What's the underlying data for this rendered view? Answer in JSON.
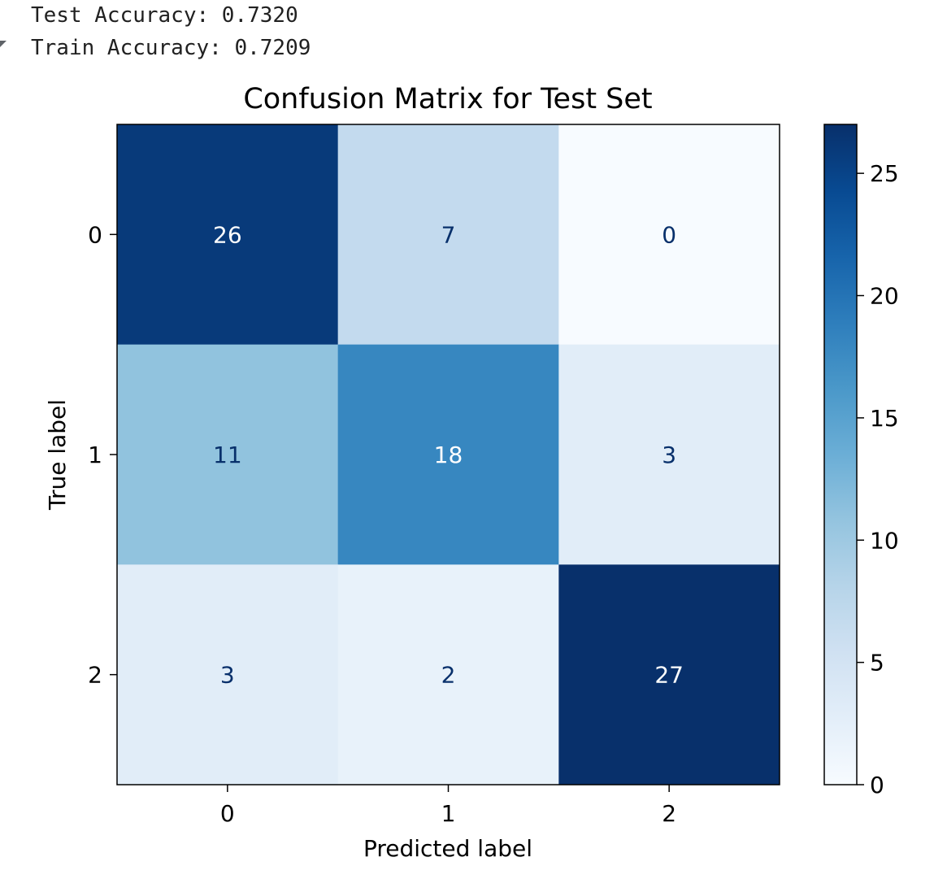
{
  "console": {
    "lines": [
      "Test Accuracy: 0.7320",
      "Train Accuracy: 0.7209"
    ]
  },
  "chart_data": {
    "type": "heatmap",
    "title": "Confusion Matrix for Test Set",
    "xlabel": "Predicted label",
    "ylabel": "True label",
    "x_categories": [
      "0",
      "1",
      "2"
    ],
    "y_categories": [
      "0",
      "1",
      "2"
    ],
    "matrix": [
      [
        26,
        7,
        0
      ],
      [
        11,
        18,
        3
      ],
      [
        3,
        2,
        27
      ]
    ],
    "colormap": "Blues",
    "colorbar": {
      "min": 0,
      "max": 27,
      "ticks": [
        0,
        5,
        10,
        15,
        20,
        25
      ],
      "tick_labels": [
        "0",
        "5",
        "10",
        "15",
        "20",
        "25"
      ]
    },
    "colors": {
      "low": "#f7fbff",
      "high": "#08306b",
      "text_light": "#ffffff",
      "text_dark": "#08306b"
    }
  }
}
